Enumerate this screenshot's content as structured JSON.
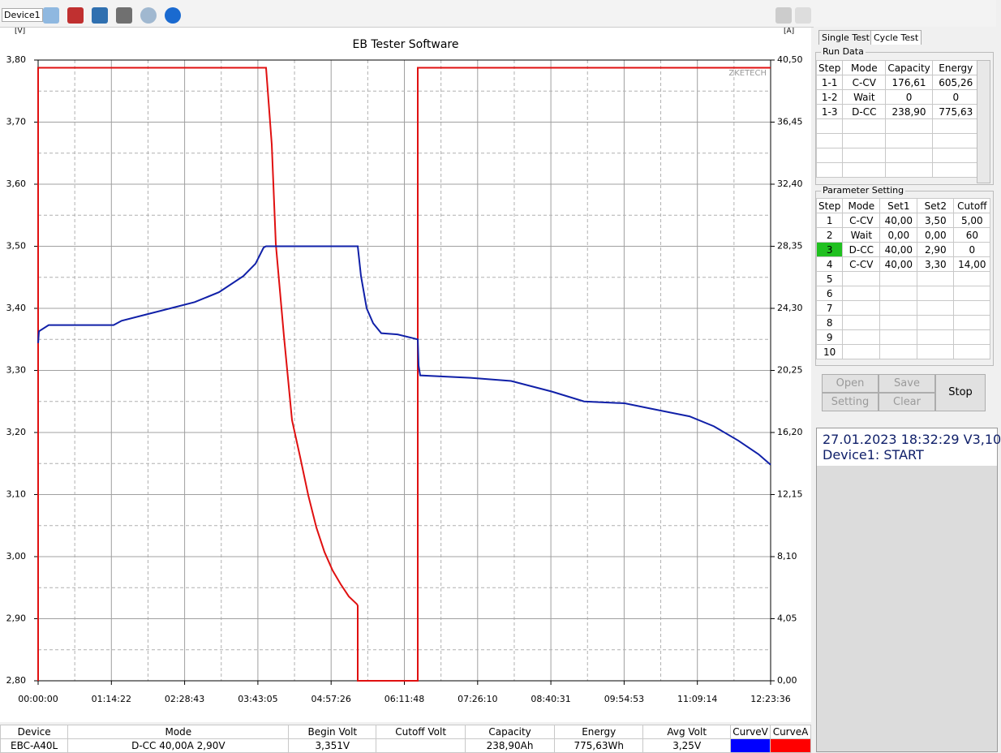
{
  "toolbar": {
    "device_tab": "Device1"
  },
  "chart_data": {
    "type": "line",
    "title": "EB Tester Software",
    "ylabel": "[V]",
    "y2label": "[A]",
    "watermark": "ZKETECH",
    "xlim": [
      0,
      44616
    ],
    "xticks": [
      {
        "value": 0,
        "label": "00:00:00"
      },
      {
        "value": 4462,
        "label": "01:14:22"
      },
      {
        "value": 8923,
        "label": "02:28:43"
      },
      {
        "value": 13385,
        "label": "03:43:05"
      },
      {
        "value": 17846,
        "label": "04:57:26"
      },
      {
        "value": 22308,
        "label": "06:11:48"
      },
      {
        "value": 26770,
        "label": "07:26:10"
      },
      {
        "value": 31231,
        "label": "08:40:31"
      },
      {
        "value": 35693,
        "label": "09:54:53"
      },
      {
        "value": 40154,
        "label": "11:09:14"
      },
      {
        "value": 44616,
        "label": "12:23:36"
      }
    ],
    "ylim": [
      2.8,
      3.8
    ],
    "yticks": [
      {
        "value": 2.8,
        "label": "2,80"
      },
      {
        "value": 2.9,
        "label": "2,90"
      },
      {
        "value": 3.0,
        "label": "3,00"
      },
      {
        "value": 3.1,
        "label": "3,10"
      },
      {
        "value": 3.2,
        "label": "3,20"
      },
      {
        "value": 3.3,
        "label": "3,30"
      },
      {
        "value": 3.4,
        "label": "3,40"
      },
      {
        "value": 3.5,
        "label": "3,50"
      },
      {
        "value": 3.6,
        "label": "3,60"
      },
      {
        "value": 3.7,
        "label": "3,70"
      },
      {
        "value": 3.8,
        "label": "3,80"
      }
    ],
    "y2lim": [
      0,
      40.5
    ],
    "y2ticks": [
      {
        "value": 0,
        "label": "0,00"
      },
      {
        "value": 4.05,
        "label": "4,05"
      },
      {
        "value": 8.1,
        "label": "8,10"
      },
      {
        "value": 12.15,
        "label": "12,15"
      },
      {
        "value": 16.2,
        "label": "16,20"
      },
      {
        "value": 20.25,
        "label": "20,25"
      },
      {
        "value": 24.3,
        "label": "24,30"
      },
      {
        "value": 28.35,
        "label": "28,35"
      },
      {
        "value": 32.4,
        "label": "32,40"
      },
      {
        "value": 36.45,
        "label": "36,45"
      },
      {
        "value": 40.5,
        "label": "40,50"
      }
    ],
    "grid": true,
    "series": [
      {
        "color": "#e01010",
        "axis": "y2",
        "x": [
          0,
          0,
          13883,
          14230,
          14477,
          14971,
          15465,
          15960,
          16454,
          16948,
          17442,
          17936,
          18430,
          18924,
          19418,
          19467,
          19467,
          23124,
          23124,
          44616
        ],
        "values": [
          0,
          40,
          40,
          35,
          28.5,
          22.5,
          17,
          14.6,
          12.1,
          10.0,
          8.4,
          7.2,
          6.3,
          5.5,
          5.0,
          4.9,
          0,
          0,
          40,
          40
        ]
      },
      {
        "color": "#1020a8",
        "axis": "y",
        "x": [
          0,
          49,
          642,
          4595,
          5089,
          6572,
          8054,
          9536,
          11018,
          12501,
          13242,
          13736,
          13884,
          19468,
          19665,
          20011,
          20406,
          20900,
          21889,
          23124,
          23173,
          23272,
          26336,
          28806,
          31277,
          33253,
          35724,
          37206,
          39676,
          41159,
          42641,
          43876,
          44616
        ],
        "values": [
          3.344,
          3.363,
          3.373,
          3.373,
          3.38,
          3.39,
          3.4,
          3.41,
          3.426,
          3.452,
          3.472,
          3.498,
          3.5,
          3.5,
          3.452,
          3.4,
          3.376,
          3.36,
          3.358,
          3.35,
          3.308,
          3.292,
          3.288,
          3.283,
          3.266,
          3.25,
          3.247,
          3.239,
          3.226,
          3.21,
          3.187,
          3.165,
          3.148
        ]
      }
    ]
  },
  "tabs": [
    "Single Test",
    "Cycle Test"
  ],
  "run_data": {
    "title": "Run Data",
    "header": [
      "Step",
      "Mode",
      "Capacity",
      "Energy"
    ],
    "rows": [
      [
        "1-1",
        "C-CV",
        "176,61",
        "605,26"
      ],
      [
        "1-2",
        "Wait",
        "0",
        "0"
      ],
      [
        "1-3",
        "D-CC",
        "238,90",
        "775,63"
      ]
    ]
  },
  "parameter_setting": {
    "title": "Parameter Setting",
    "header": [
      "Step",
      "Mode",
      "Set1",
      "Set2",
      "Cutoff"
    ],
    "rows": [
      [
        "1",
        "C-CV",
        "40,00",
        "3,50",
        "5,00"
      ],
      [
        "2",
        "Wait",
        "0,00",
        "0,00",
        "60"
      ],
      [
        "3",
        "D-CC",
        "40,00",
        "2,90",
        "0"
      ],
      [
        "4",
        "C-CV",
        "40,00",
        "3,30",
        "14,00"
      ],
      [
        "5"
      ],
      [
        "6"
      ],
      [
        "7"
      ],
      [
        "8"
      ],
      [
        "9"
      ],
      [
        "10"
      ]
    ]
  },
  "buttons": {
    "open": "Open",
    "save": "Save",
    "setting": "Setting",
    "clear": "Clear",
    "stop": "Stop"
  },
  "status": {
    "datetime": "27.01.2023 18:32:29  V3,10",
    "message": "Device1: START"
  },
  "summary": {
    "header": [
      "Device",
      "Mode",
      "Begin Volt",
      "Cutoff Volt",
      "Capacity",
      "Energy",
      "Avg Volt",
      "CurveV",
      "CurveA"
    ],
    "row": [
      "EBC-A40L",
      "D-CC 40,00A 2,90V",
      "3,351V",
      null,
      "238,90Ah",
      "775,63Wh",
      "3,25V"
    ]
  }
}
